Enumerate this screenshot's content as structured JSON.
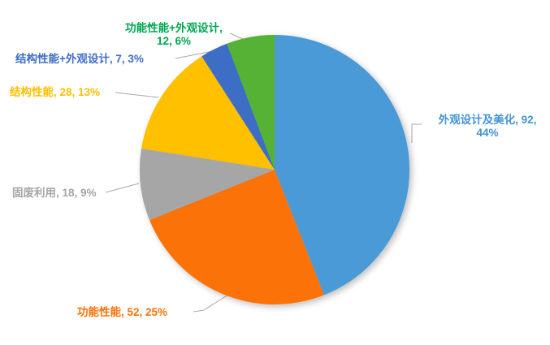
{
  "chart_data": {
    "type": "pie",
    "title": "",
    "legend": "none",
    "start_angle_deg": 0,
    "direction": "clockwise",
    "total": 209,
    "categories": [
      "外观设计及美化",
      "功能性能",
      "固废利用",
      "结构性能",
      "结构性能+外观设计",
      "功能性能+外观设计"
    ],
    "values": [
      92,
      52,
      18,
      28,
      7,
      12
    ],
    "percentages": [
      "44%",
      "25%",
      "9%",
      "13%",
      "3%",
      "6%"
    ],
    "colors": [
      "#4A9AD8",
      "#FB7208",
      "#A6A6A6",
      "#FFC000",
      "#3E6DC6",
      "#55B234"
    ],
    "leader_line_color": "#A8A8A8",
    "data_labels": [
      {
        "line1": "外观设计及美化, 92,",
        "line2": "44%",
        "color": "#4193D5"
      },
      {
        "line1": "功能性能, 52, 25%",
        "color": "#FB7208"
      },
      {
        "line1": "固废利用, 18, 9%",
        "color": "#A6A6A6"
      },
      {
        "line1": "结构性能, 28, 13%",
        "color": "#FFC000"
      },
      {
        "line1": "结构性能+外观设计, 7, 3%",
        "color": "#3E6DC6"
      },
      {
        "line1": "功能性能+外观设计,",
        "line2": "12, 6%",
        "color": "#00A651"
      }
    ]
  }
}
